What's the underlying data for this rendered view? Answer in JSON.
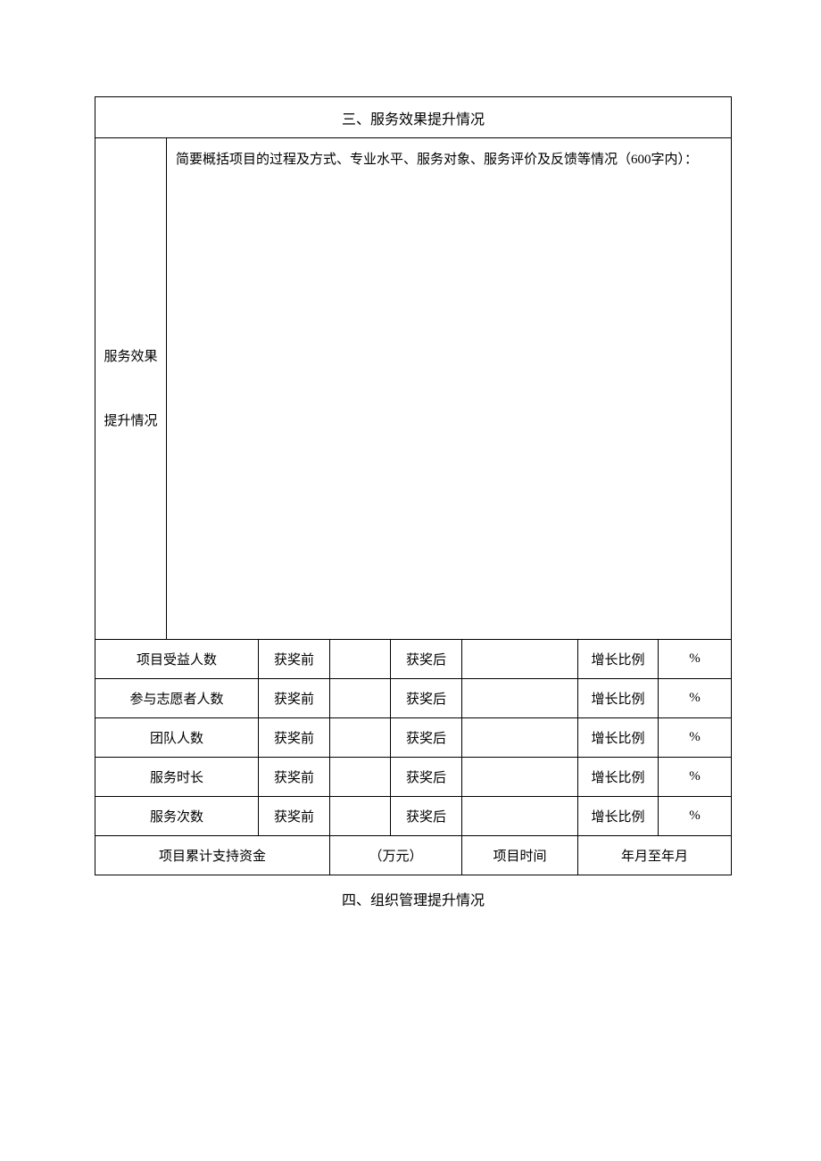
{
  "sectionTitle": "三、服务效果提升情况",
  "rowLabel": "服务效果\n\n提升情况",
  "summaryPrompt": "简要概括项目的过程及方式、专业水平、服务对象、服务评价及反馈等情况（600字内）：",
  "metricRows": [
    {
      "label": "项目受益人数",
      "beforeLabel": "获奖前",
      "beforeValue": "",
      "afterLabel": "获奖后",
      "afterValue": "",
      "ratioLabel": "增长比例",
      "ratioValue": "%"
    },
    {
      "label": "参与志愿者人数",
      "beforeLabel": "获奖前",
      "beforeValue": "",
      "afterLabel": "获奖后",
      "afterValue": "",
      "ratioLabel": "增长比例",
      "ratioValue": "%"
    },
    {
      "label": "团队人数",
      "beforeLabel": "获奖前",
      "beforeValue": "",
      "afterLabel": "获奖后",
      "afterValue": "",
      "ratioLabel": "增长比例",
      "ratioValue": "%"
    },
    {
      "label": "服务时长",
      "beforeLabel": "获奖前",
      "beforeValue": "",
      "afterLabel": "获奖后",
      "afterValue": "",
      "ratioLabel": "增长比例",
      "ratioValue": "%"
    },
    {
      "label": "服务次数",
      "beforeLabel": "获奖前",
      "beforeValue": "",
      "afterLabel": "获奖后",
      "afterValue": "",
      "ratioLabel": "增长比例",
      "ratioValue": "%"
    }
  ],
  "fundRow": {
    "label": "项目累计支持资金",
    "value": "（万元）",
    "timeLabel": "项目时间",
    "timeValue": "年月至年月"
  },
  "footer": "四、组织管理提升情况"
}
